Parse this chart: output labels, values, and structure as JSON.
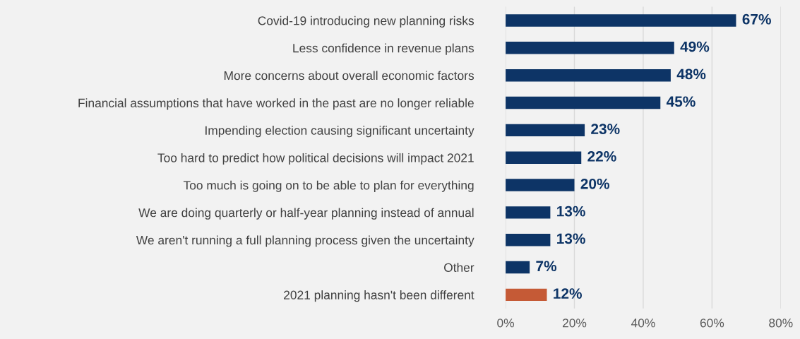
{
  "chart_data": {
    "type": "bar",
    "orientation": "horizontal",
    "categories": [
      "Covid-19 introducing new planning risks",
      "Less confidence in revenue plans",
      "More concerns about overall economic factors",
      "Financial assumptions that have worked in the past are no longer reliable",
      "Impending election causing significant uncertainty",
      "Too hard to predict how political decisions will impact 2021",
      "Too much is going on to be able to plan for everything",
      "We are doing quarterly or half-year planning instead of annual",
      "We aren't running a full planning process given the uncertainty",
      "Other",
      "2021 planning hasn't been different"
    ],
    "values": [
      67,
      49,
      48,
      45,
      23,
      22,
      20,
      13,
      13,
      7,
      12
    ],
    "colors": [
      "#0d3466",
      "#0d3466",
      "#0d3466",
      "#0d3466",
      "#0d3466",
      "#0d3466",
      "#0d3466",
      "#0d3466",
      "#0d3466",
      "#0d3466",
      "#c55a36"
    ],
    "value_labels": [
      "67%",
      "49%",
      "48%",
      "45%",
      "23%",
      "22%",
      "20%",
      "13%",
      "13%",
      "7%",
      "12%"
    ],
    "xlim": [
      0,
      80
    ],
    "xticks": [
      {
        "value": 0,
        "label": "0%"
      },
      {
        "value": 20,
        "label": "20%"
      },
      {
        "value": 40,
        "label": "40%"
      },
      {
        "value": 60,
        "label": "60%"
      },
      {
        "value": 80,
        "label": "80%"
      }
    ],
    "grid": "x"
  }
}
